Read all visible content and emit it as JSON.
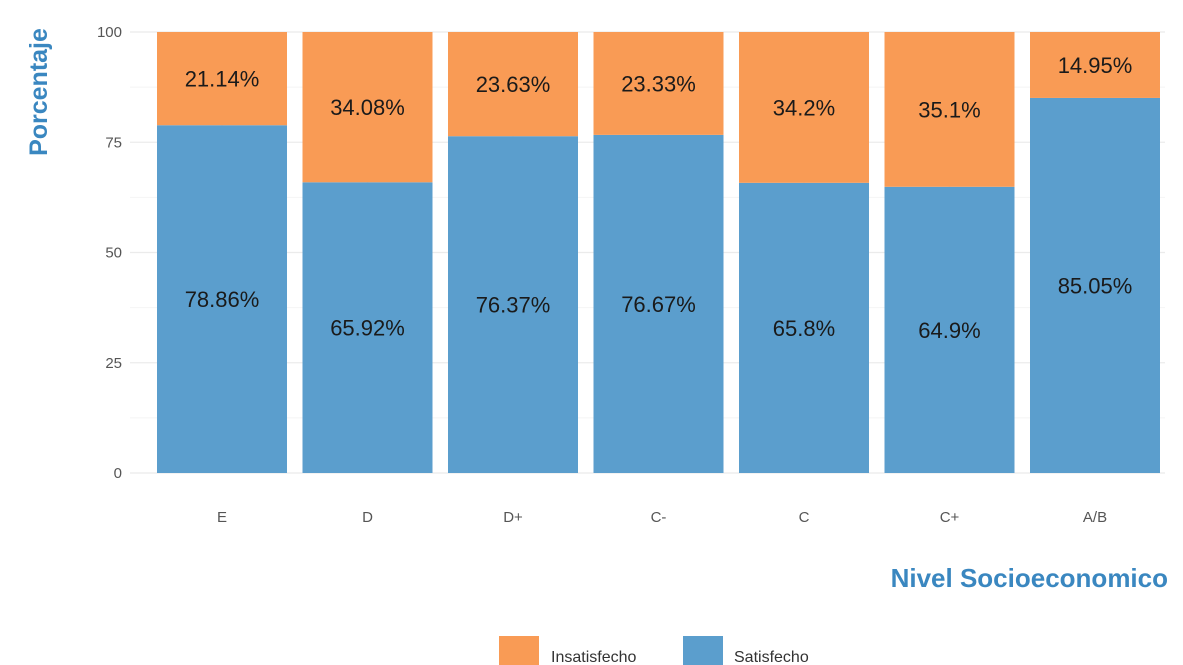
{
  "chart_data": {
    "type": "bar",
    "stacked": true,
    "categories": [
      "E",
      "D",
      "D+",
      "C-",
      "C",
      "C+",
      "A/B"
    ],
    "series": [
      {
        "name": "Satisfecho",
        "color": "#5b9ecd",
        "values": [
          78.86,
          65.92,
          76.37,
          76.67,
          65.8,
          64.9,
          85.05
        ],
        "labels": [
          "78.86%",
          "65.92%",
          "76.37%",
          "76.67%",
          "65.8%",
          "64.9%",
          "85.05%"
        ]
      },
      {
        "name": "Insatisfecho",
        "color": "#f99b55",
        "values": [
          21.14,
          34.08,
          23.63,
          23.33,
          34.2,
          35.1,
          14.95
        ],
        "labels": [
          "21.14%",
          "34.08%",
          "23.63%",
          "23.33%",
          "34.2%",
          "35.1%",
          "14.95%"
        ]
      }
    ],
    "xlabel": "Nivel Socioeconomico",
    "ylabel": "Porcentaje",
    "ylim": [
      0,
      100
    ],
    "yticks": [
      "0",
      "25",
      "50",
      "75",
      "100"
    ],
    "grid": true,
    "legend": {
      "position": "bottom",
      "items": [
        {
          "label": "Insatisfecho",
          "color": "#f99b55"
        },
        {
          "label": "Satisfecho",
          "color": "#5b9ecd"
        }
      ]
    }
  }
}
